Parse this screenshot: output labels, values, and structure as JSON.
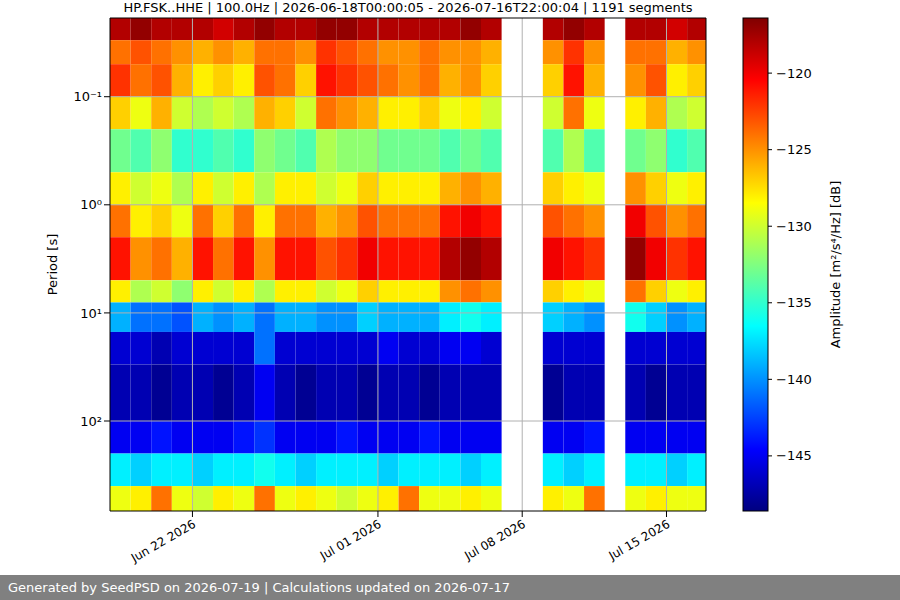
{
  "chart_data": {
    "type": "heatmap",
    "title": "HP.FSK..HHE | 100.0Hz | 2026-06-18T00:00:05 - 2026-07-16T22:00:04 | 1191 segments",
    "ylabel": "Period [s]",
    "footer": "Generated by SeedPSD on 2026-07-19 | Calculations updated on 2026-07-17",
    "log": "y",
    "grid": true,
    "xlim": [
      "2026-06-18T00:00:05",
      "2026-07-16T22:00:04"
    ],
    "xticks": [
      {
        "value": "2026-06-22",
        "label": "Jun 22 2026"
      },
      {
        "value": "2026-07-01",
        "label": "Jul 01 2026"
      },
      {
        "value": "2026-07-08",
        "label": "Jul 08 2026"
      },
      {
        "value": "2026-07-15",
        "label": "Jul 15 2026"
      }
    ],
    "ylim": [
      0.0187,
      680
    ],
    "yticks": [
      {
        "value": 0.1,
        "label": "10⁻¹"
      },
      {
        "value": 1,
        "label": "10⁰"
      },
      {
        "value": 10,
        "label": "10¹"
      },
      {
        "value": 100,
        "label": "10²"
      }
    ],
    "x_bins": [
      "2026-06-18",
      "2026-06-19",
      "2026-06-20",
      "2026-06-21",
      "2026-06-22",
      "2026-06-23",
      "2026-06-24",
      "2026-06-25",
      "2026-06-26",
      "2026-06-27",
      "2026-06-28",
      "2026-06-29",
      "2026-06-30",
      "2026-07-01",
      "2026-07-02",
      "2026-07-03",
      "2026-07-04",
      "2026-07-05",
      "2026-07-06",
      "2026-07-07",
      "2026-07-08",
      "2026-07-09",
      "2026-07-10",
      "2026-07-11",
      "2026-07-12",
      "2026-07-13",
      "2026-07-14",
      "2026-07-15",
      "2026-07-16",
      "2026-07-17"
    ],
    "period_bins": [
      0.0187,
      0.03,
      0.05,
      0.1,
      0.2,
      0.5,
      1,
      2,
      5,
      8,
      15,
      30,
      100,
      200,
      400,
      680
    ],
    "cells": [
      [
        -118,
        -117,
        -118,
        -118,
        -118,
        -119,
        -118,
        -117,
        -118,
        -118,
        -117,
        -117,
        -118,
        -118,
        -118,
        -118,
        -118,
        -117,
        -118,
        null,
        null,
        -118,
        -117,
        -118,
        null,
        -118,
        -118,
        -119,
        -118
      ],
      [
        -124,
        -123,
        -124,
        -125,
        -126,
        -125,
        -126,
        -124,
        -124,
        -125,
        -122,
        -123,
        -124,
        -125,
        -125,
        -124,
        -125,
        -125,
        -126,
        null,
        null,
        -125,
        -122,
        -125,
        null,
        -124,
        -124,
        -126,
        -125
      ],
      [
        -122,
        -124,
        -123,
        -126,
        -128,
        -127,
        -128,
        -123,
        -124,
        -127,
        -121,
        -122,
        -123,
        -124,
        -125,
        -124,
        -126,
        -125,
        -127,
        null,
        null,
        -127,
        -121,
        -126,
        null,
        -125,
        -123,
        -128,
        -127
      ],
      [
        -127,
        -129,
        -126,
        -130,
        -131,
        -130,
        -131,
        -126,
        -127,
        -130,
        -124,
        -125,
        -126,
        -128,
        -128,
        -127,
        -129,
        -128,
        -130,
        null,
        null,
        -130,
        -124,
        -129,
        null,
        -128,
        -126,
        -131,
        -130
      ],
      [
        -133,
        -134,
        -132,
        -135,
        -135,
        -134,
        -135,
        -132,
        -133,
        -134,
        -131,
        -132,
        -132,
        -133,
        -133,
        -133,
        -134,
        -133,
        -134,
        null,
        null,
        -134,
        -131,
        -134,
        null,
        -133,
        -132,
        -135,
        -134
      ],
      [
        -128,
        -130,
        -129,
        -131,
        -128,
        -130,
        -128,
        -131,
        -128,
        -128,
        -130,
        -129,
        -127,
        -128,
        -128,
        -128,
        -126,
        -125,
        -126,
        null,
        null,
        -127,
        -128,
        -129,
        null,
        -125,
        -127,
        -129,
        -128
      ],
      [
        -124,
        -128,
        -127,
        -129,
        -124,
        -127,
        -124,
        -128,
        -124,
        -124,
        -126,
        -125,
        -123,
        -124,
        -124,
        -124,
        -121,
        -120,
        -121,
        null,
        null,
        -123,
        -124,
        -125,
        null,
        -120,
        -123,
        -125,
        -124
      ],
      [
        -121,
        -125,
        -124,
        -126,
        -121,
        -124,
        -121,
        -125,
        -121,
        -121,
        -123,
        -122,
        -120,
        -121,
        -121,
        -121,
        -118,
        -117,
        -118,
        null,
        null,
        -120,
        -121,
        -122,
        null,
        -117,
        -120,
        -122,
        -121
      ],
      [
        -128,
        -131,
        -130,
        -132,
        -128,
        -130,
        -128,
        -131,
        -128,
        -128,
        -130,
        -129,
        -127,
        -128,
        -128,
        -128,
        -125,
        -124,
        -125,
        null,
        null,
        -127,
        -128,
        -129,
        null,
        -124,
        -127,
        -129,
        -128
      ],
      [
        -139,
        -141,
        -141,
        -142,
        -139,
        -140,
        -139,
        -141,
        -139,
        -139,
        -140,
        -140,
        -138,
        -139,
        -139,
        -139,
        -137,
        -136,
        -137,
        null,
        null,
        -138,
        -139,
        -140,
        null,
        -136,
        -138,
        -140,
        -139
      ],
      [
        -146,
        -146,
        -147,
        -146,
        -146,
        -146,
        -146,
        -141,
        -146,
        -146,
        -146,
        -146,
        -146,
        -145,
        -146,
        -146,
        -145,
        -145,
        -146,
        null,
        null,
        -146,
        -146,
        -146,
        null,
        -146,
        -146,
        -146,
        -146
      ],
      [
        -147,
        -147,
        -148,
        -147,
        -147,
        -148,
        -147,
        -145,
        -147,
        -148,
        -147,
        -147,
        -148,
        -147,
        -147,
        -148,
        -147,
        -147,
        -147,
        null,
        null,
        -148,
        -147,
        -147,
        null,
        -147,
        -148,
        -147,
        -147
      ],
      [
        -145,
        -145,
        -144,
        -145,
        -145,
        -145,
        -144,
        -143,
        -145,
        -145,
        -145,
        -144,
        -145,
        -145,
        -145,
        -144,
        -145,
        -145,
        -145,
        null,
        null,
        -145,
        -145,
        -144,
        null,
        -145,
        -145,
        -145,
        -145
      ],
      [
        -137,
        -138,
        -137,
        -137,
        -138,
        -137,
        -137,
        -136,
        -137,
        -138,
        -137,
        -137,
        -137,
        -138,
        -137,
        -137,
        -137,
        -138,
        -137,
        null,
        null,
        -137,
        -138,
        -137,
        null,
        -137,
        -137,
        -138,
        -137
      ],
      [
        -129,
        -128,
        -124,
        -129,
        -130,
        -128,
        -129,
        -124,
        -129,
        -128,
        -129,
        -130,
        -129,
        -128,
        -124,
        -129,
        -129,
        -128,
        -129,
        null,
        null,
        -128,
        -129,
        -124,
        null,
        -129,
        -128,
        -129,
        -129
      ]
    ],
    "colorbar": {
      "label": "Amplitude [m²/s⁴/Hz] [dB]",
      "range": [
        -148.6,
        -116.4
      ],
      "ticks": [
        {
          "value": -145,
          "label": "−145"
        },
        {
          "value": -140,
          "label": "−140"
        },
        {
          "value": -135,
          "label": "−135"
        },
        {
          "value": -130,
          "label": "−130"
        },
        {
          "value": -125,
          "label": "−125"
        },
        {
          "value": -120,
          "label": "−120"
        }
      ]
    }
  }
}
